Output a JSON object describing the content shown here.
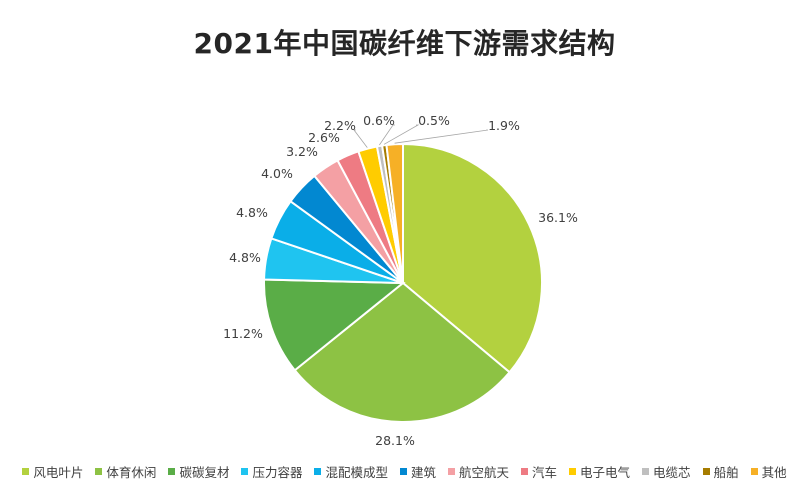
{
  "chart_data": {
    "type": "pie",
    "title": "2021年中国碳纤维下游需求结构",
    "slices": [
      {
        "name": "风电叶片",
        "value": 36.1,
        "label": "36.1%",
        "color": "#b3d13f"
      },
      {
        "name": "体育休闲",
        "value": 28.1,
        "label": "28.1%",
        "color": "#8dc244"
      },
      {
        "name": "碳碳复材",
        "value": 11.2,
        "label": "11.2%",
        "color": "#5aad47"
      },
      {
        "name": "压力容器",
        "value": 4.8,
        "label": "4.8%",
        "color": "#1fc4f0"
      },
      {
        "name": "混配模成型",
        "value": 4.8,
        "label": "4.8%",
        "color": "#0aaee8"
      },
      {
        "name": "建筑",
        "value": 4.0,
        "label": "4.0%",
        "color": "#0288d1"
      },
      {
        "name": "航空航天",
        "value": 3.2,
        "label": "3.2%",
        "color": "#f4a0a4"
      },
      {
        "name": "汽车",
        "value": 2.6,
        "label": "2.6%",
        "color": "#ee7b83"
      },
      {
        "name": "电子电气",
        "value": 2.2,
        "label": "2.2%",
        "color": "#ffcc00"
      },
      {
        "name": "电缆芯",
        "value": 0.6,
        "label": "0.6%",
        "color": "#bfbfbf"
      },
      {
        "name": "船舶",
        "value": 0.5,
        "label": "0.5%",
        "color": "#a67c00"
      },
      {
        "name": "其他",
        "value": 1.9,
        "label": "1.9%",
        "color": "#f6b026"
      }
    ],
    "legend_position": "bottom"
  }
}
